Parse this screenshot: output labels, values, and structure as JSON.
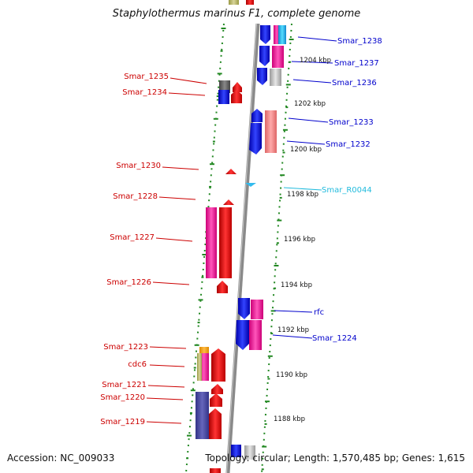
{
  "title": "Staphylothermus marinus F1, complete genome",
  "accession": "Accession: NC_009033",
  "topology": "Topology: circular; Length: 1,570,485 bp; Genes: 1,615",
  "colors": {
    "left_label": "#cc0000",
    "right_label": "#0000cc",
    "rna_label": "#22bbdd",
    "tick": "#228822",
    "backbone": "#888888"
  },
  "left_labels": [
    {
      "text": "Smar_1235"
    },
    {
      "text": "Smar_1234"
    },
    {
      "text": "Smar_1230"
    },
    {
      "text": "Smar_1228"
    },
    {
      "text": "Smar_1227"
    },
    {
      "text": "Smar_1226"
    },
    {
      "text": "Smar_1223"
    },
    {
      "text": "cdc6"
    },
    {
      "text": "Smar_1221"
    },
    {
      "text": "Smar_1220"
    },
    {
      "text": "Smar_1219"
    }
  ],
  "right_labels": [
    {
      "text": "Smar_1238"
    },
    {
      "text": "Smar_1237"
    },
    {
      "text": "Smar_1236"
    },
    {
      "text": "Smar_1233"
    },
    {
      "text": "Smar_1232"
    },
    {
      "text": "Smar_R0044"
    },
    {
      "text": "rfc"
    },
    {
      "text": "Smar_1224"
    }
  ],
  "kbp_labels": [
    {
      "text": "1204 kbp"
    },
    {
      "text": "1202 kbp"
    },
    {
      "text": "1200 kbp"
    },
    {
      "text": "1198 kbp"
    },
    {
      "text": "1196 kbp"
    },
    {
      "text": "1194 kbp"
    },
    {
      "text": "1192 kbp"
    },
    {
      "text": "1190 kbp"
    },
    {
      "text": "1188 kbp"
    }
  ]
}
